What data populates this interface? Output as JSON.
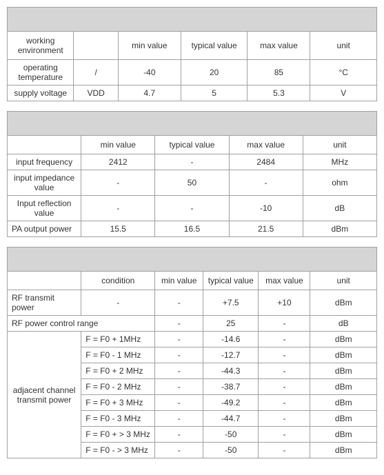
{
  "table1": {
    "headers": [
      "working environment",
      "",
      "min value",
      "typical value",
      "max value",
      "unit"
    ],
    "rows": [
      [
        "operating temperature",
        "/",
        "-40",
        "20",
        "85",
        "°C"
      ],
      [
        "supply voltage",
        "VDD",
        "4.7",
        "5",
        "5.3",
        "V"
      ]
    ]
  },
  "table2": {
    "headers": [
      "",
      "min value",
      "typical value",
      "max value",
      "unit"
    ],
    "rows": [
      [
        "input frequency",
        "2412",
        "-",
        "2484",
        "MHz"
      ],
      [
        "input impedance value",
        "-",
        "50",
        "-",
        "ohm"
      ],
      [
        "Input reflection value",
        "-",
        "-",
        "-10",
        "dB"
      ],
      [
        "PA output power",
        "15.5",
        "16.5",
        "21.5",
        "dBm"
      ]
    ]
  },
  "table3": {
    "headers": [
      "",
      "condition",
      "min value",
      "typical value",
      "max value",
      "unit"
    ],
    "rf_transmit_power": [
      "RF transmit power",
      "-",
      "-",
      "+7.5",
      "+10",
      "dBm"
    ],
    "rf_control_range": [
      "RF power control range",
      "-",
      "-",
      "25",
      "-",
      "dB"
    ],
    "adjacent_label": "adjacent channel transmit power",
    "adjacent_rows": [
      [
        "F = F0 + 1MHz",
        "-",
        "-14.6",
        "-",
        "dBm"
      ],
      [
        "F = F0 - 1 MHz",
        "-",
        "-12.7",
        "-",
        "dBm"
      ],
      [
        "F = F0 + 2 MHz",
        "-",
        "-44.3",
        "-",
        "dBm"
      ],
      [
        "F = F0 - 2 MHz",
        "-",
        "-38.7",
        "-",
        "dBm"
      ],
      [
        "F = F0 + 3 MHz",
        "-",
        "-49.2",
        "-",
        "dBm"
      ],
      [
        "F = F0 - 3 MHz",
        "-",
        "-44.7",
        "-",
        "dBm"
      ],
      [
        "F = F0 + > 3 MHz",
        "-",
        "-50",
        "-",
        "dBm"
      ],
      [
        "F = F0 - > 3 MHz",
        "-",
        "-50",
        "-",
        "dBm"
      ]
    ]
  }
}
